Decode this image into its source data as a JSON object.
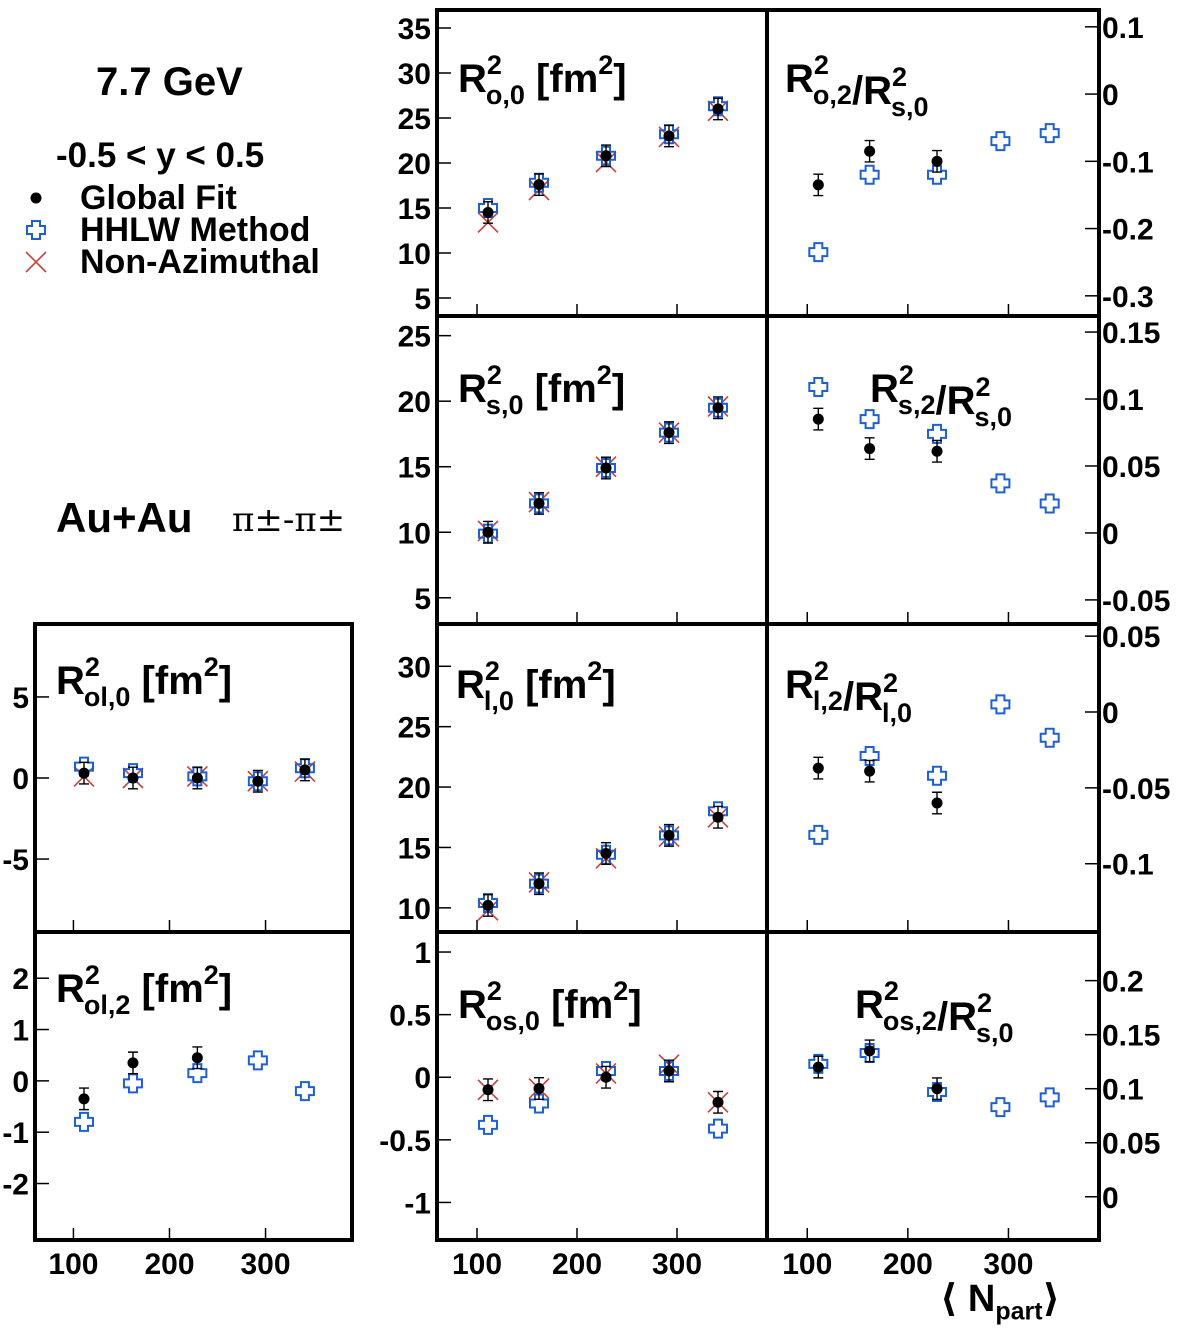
{
  "info": {
    "energy": "7.7 GeV",
    "rapidity": "-0.5 < y < 0.5",
    "system": "Au+Au",
    "pair": "π±-π±"
  },
  "legend": [
    {
      "label": "Global Fit",
      "marker": "dot",
      "color": "#000000"
    },
    {
      "label": "HHLW Method",
      "marker": "open-cross",
      "color": "#1f5fd6"
    },
    {
      "label": "Non-Azimuthal",
      "marker": "x",
      "color": "#c8413b"
    }
  ],
  "xaxis": {
    "label_prefix": "⟨ N",
    "label_sub": "part",
    "label_suffix": "⟩",
    "ticks": [
      "100",
      "200",
      "300"
    ],
    "range": [
      60,
      390
    ]
  },
  "chart_data": [
    {
      "type": "scatter",
      "title": "R²o,0 [fm²]",
      "ylim": [
        3,
        37
      ],
      "yticks": [
        "5",
        "10",
        "15",
        "20",
        "25",
        "30",
        "35"
      ],
      "x": [
        111,
        162,
        229,
        292,
        341
      ],
      "series": [
        {
          "name": "Global Fit",
          "values": [
            14.5,
            17.6,
            20.8,
            23.0,
            26.0
          ]
        },
        {
          "name": "HHLW Method",
          "values": [
            15.0,
            17.8,
            20.8,
            23.2,
            26.3
          ]
        },
        {
          "name": "Non-Azimuthal",
          "values": [
            13.4,
            17.0,
            20.1,
            22.9,
            25.8
          ]
        }
      ]
    },
    {
      "type": "scatter",
      "title": "R²o,2/R²s,0",
      "ylim": [
        -0.33,
        0.125
      ],
      "yticks": [
        "-0.3",
        "-0.2",
        "-0.1",
        "0",
        "0.1"
      ],
      "x": [
        111,
        162,
        229,
        292,
        341
      ],
      "series": [
        {
          "name": "Global Fit",
          "values": [
            -0.135,
            -0.085,
            -0.1
          ]
        },
        {
          "name": "HHLW Method",
          "values": [
            -0.235,
            -0.12,
            -0.12,
            -0.07,
            -0.058
          ]
        }
      ]
    },
    {
      "type": "scatter",
      "title": "R²s,0 [fm²]",
      "ylim": [
        3,
        26.5
      ],
      "yticks": [
        "5",
        "10",
        "15",
        "20",
        "25"
      ],
      "x": [
        111,
        162,
        229,
        292,
        341
      ],
      "series": [
        {
          "name": "Global Fit",
          "values": [
            10.0,
            12.2,
            14.9,
            17.6,
            19.5
          ]
        },
        {
          "name": "HHLW Method",
          "values": [
            9.9,
            12.2,
            14.9,
            17.6,
            19.5
          ]
        },
        {
          "name": "Non-Azimuthal",
          "values": [
            10.1,
            12.3,
            15.0,
            17.6,
            19.6
          ]
        }
      ]
    },
    {
      "type": "scatter",
      "title": "R²s,2/R²s,0",
      "ylim": [
        -0.068,
        0.162
      ],
      "yticks": [
        "-0.05",
        "0",
        "0.05",
        "0.1",
        "0.15"
      ],
      "x": [
        111,
        162,
        229,
        292,
        341
      ],
      "series": [
        {
          "name": "Global Fit",
          "values": [
            0.085,
            0.063,
            0.061
          ]
        },
        {
          "name": "HHLW Method",
          "values": [
            0.109,
            0.085,
            0.074,
            0.037,
            0.022
          ]
        }
      ]
    },
    {
      "type": "scatter",
      "title": "R²ol,0 [fm²]",
      "ylim": [
        -9.5,
        9.5
      ],
      "yticks": [
        "-5",
        "0",
        "5"
      ],
      "x": [
        111,
        162,
        229,
        292,
        341
      ],
      "series": [
        {
          "name": "Global Fit",
          "values": [
            0.3,
            0.0,
            0.0,
            -0.2,
            0.5
          ]
        },
        {
          "name": "HHLW Method",
          "values": [
            0.7,
            0.3,
            0.1,
            -0.2,
            0.6
          ]
        },
        {
          "name": "Non-Azimuthal",
          "values": [
            0.1,
            0.0,
            0.1,
            -0.2,
            0.4
          ]
        }
      ]
    },
    {
      "type": "scatter",
      "title": "R²l,0 [fm²]",
      "ylim": [
        8,
        33.5
      ],
      "yticks": [
        "10",
        "15",
        "20",
        "25",
        "30"
      ],
      "x": [
        111,
        162,
        229,
        292,
        341
      ],
      "series": [
        {
          "name": "Global Fit",
          "values": [
            10.2,
            12.0,
            14.5,
            16.0,
            17.5
          ]
        },
        {
          "name": "HHLW Method",
          "values": [
            10.4,
            12.0,
            14.4,
            16.0,
            18.0
          ]
        },
        {
          "name": "Non-Azimuthal",
          "values": [
            9.8,
            12.1,
            14.1,
            15.9,
            17.5
          ]
        }
      ]
    },
    {
      "type": "scatter",
      "title": "R²l,2/R²l,0",
      "ylim": [
        -0.145,
        0.058
      ],
      "yticks": [
        "-0.1",
        "-0.05",
        "0",
        "0.05"
      ],
      "x": [
        111,
        162,
        229,
        292,
        341
      ],
      "series": [
        {
          "name": "Global Fit",
          "values": [
            -0.037,
            -0.039,
            -0.06
          ]
        },
        {
          "name": "HHLW Method",
          "values": [
            -0.081,
            -0.029,
            -0.042,
            0.005,
            -0.017
          ]
        }
      ]
    },
    {
      "type": "scatter",
      "title": "R²ol,2 [fm²]",
      "ylim": [
        -3.1,
        2.9
      ],
      "yticks": [
        "-2",
        "-1",
        "0",
        "1",
        "2"
      ],
      "x": [
        111,
        162,
        229,
        292,
        341
      ],
      "series": [
        {
          "name": "Global Fit",
          "values": [
            -0.35,
            0.35,
            0.45
          ]
        },
        {
          "name": "HHLW Method",
          "values": [
            -0.8,
            -0.05,
            0.15,
            0.4,
            -0.2
          ]
        }
      ]
    },
    {
      "type": "scatter",
      "title": "R²os,0 [fm²]",
      "ylim": [
        -1.3,
        1.16
      ],
      "yticks": [
        "-1",
        "-0.5",
        "0",
        "0.5",
        "1"
      ],
      "x": [
        111,
        162,
        229,
        292,
        341
      ],
      "series": [
        {
          "name": "Global Fit",
          "values": [
            -0.1,
            -0.09,
            0.0,
            0.05,
            -0.2
          ]
        },
        {
          "name": "HHLW Method",
          "values": [
            -0.38,
            -0.21,
            0.05,
            0.05,
            -0.41
          ]
        },
        {
          "name": "Non-Azimuthal",
          "values": [
            -0.1,
            -0.09,
            0.03,
            0.1,
            -0.2
          ]
        }
      ]
    },
    {
      "type": "scatter",
      "title": "R²os,2/R²s,0",
      "ylim": [
        -0.04,
        0.245
      ],
      "yticks": [
        "0",
        "0.05",
        "0.1",
        "0.15",
        "0.2"
      ],
      "x": [
        111,
        162,
        229,
        292,
        341
      ],
      "series": [
        {
          "name": "Global Fit",
          "values": [
            0.12,
            0.135,
            0.1
          ]
        },
        {
          "name": "HHLW Method",
          "values": [
            0.123,
            0.133,
            0.097,
            0.083,
            0.092
          ]
        }
      ]
    }
  ]
}
